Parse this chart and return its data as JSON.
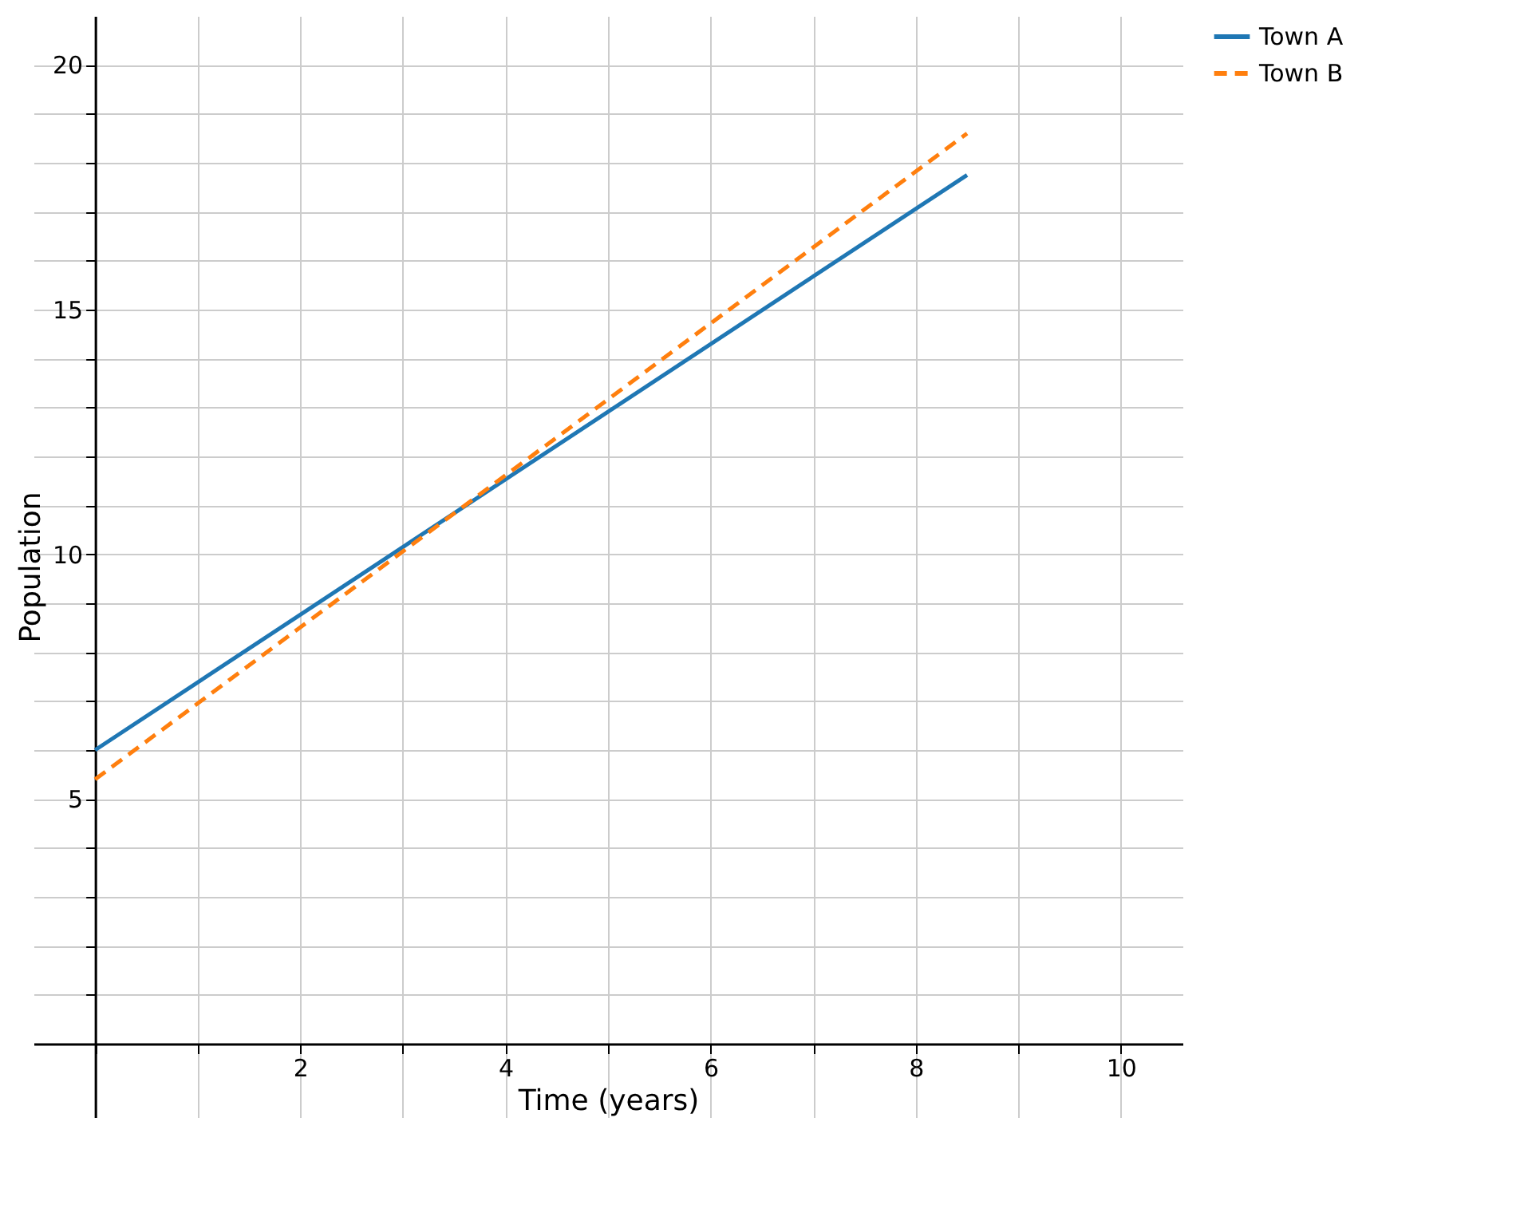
{
  "chart_data": {
    "type": "line",
    "xlabel": "Time (years)",
    "ylabel": "Population",
    "xlim": [
      -0.6,
      10.6
    ],
    "ylim": [
      -1.5,
      21
    ],
    "xticks": [
      {
        "value": 0,
        "label": null
      },
      {
        "value": 1,
        "label": null
      },
      2,
      {
        "value": 3,
        "label": null
      },
      4,
      {
        "value": 5,
        "label": null
      },
      6,
      {
        "value": 7,
        "label": null
      },
      8,
      {
        "value": 9,
        "label": null
      },
      10
    ],
    "yticks": [
      {
        "value": 0,
        "label": null
      },
      {
        "value": 1,
        "label": null
      },
      {
        "value": 2,
        "label": null
      },
      {
        "value": 3,
        "label": null
      },
      {
        "value": 4,
        "label": null
      },
      5,
      {
        "value": 6,
        "label": null
      },
      {
        "value": 7,
        "label": null
      },
      {
        "value": 8,
        "label": null
      },
      {
        "value": 9,
        "label": null
      },
      10,
      {
        "value": 11,
        "label": null
      },
      {
        "value": 12,
        "label": null
      },
      {
        "value": 13,
        "label": null
      },
      {
        "value": 14,
        "label": null
      },
      15,
      {
        "value": 16,
        "label": null
      },
      {
        "value": 17,
        "label": null
      },
      {
        "value": 18,
        "label": null
      },
      {
        "value": 19,
        "label": null
      },
      20
    ],
    "x": [
      0,
      8.5
    ],
    "grid": true,
    "legend": "right",
    "marker": "none",
    "series": [
      {
        "name": "Town A",
        "color": "#1f77b4",
        "line_style": "solid",
        "values": [
          6,
          17.75
        ]
      },
      {
        "name": "Town B",
        "color": "#ff7f0e",
        "line_style": "dashed",
        "values": [
          5.4,
          18.6
        ]
      }
    ]
  }
}
